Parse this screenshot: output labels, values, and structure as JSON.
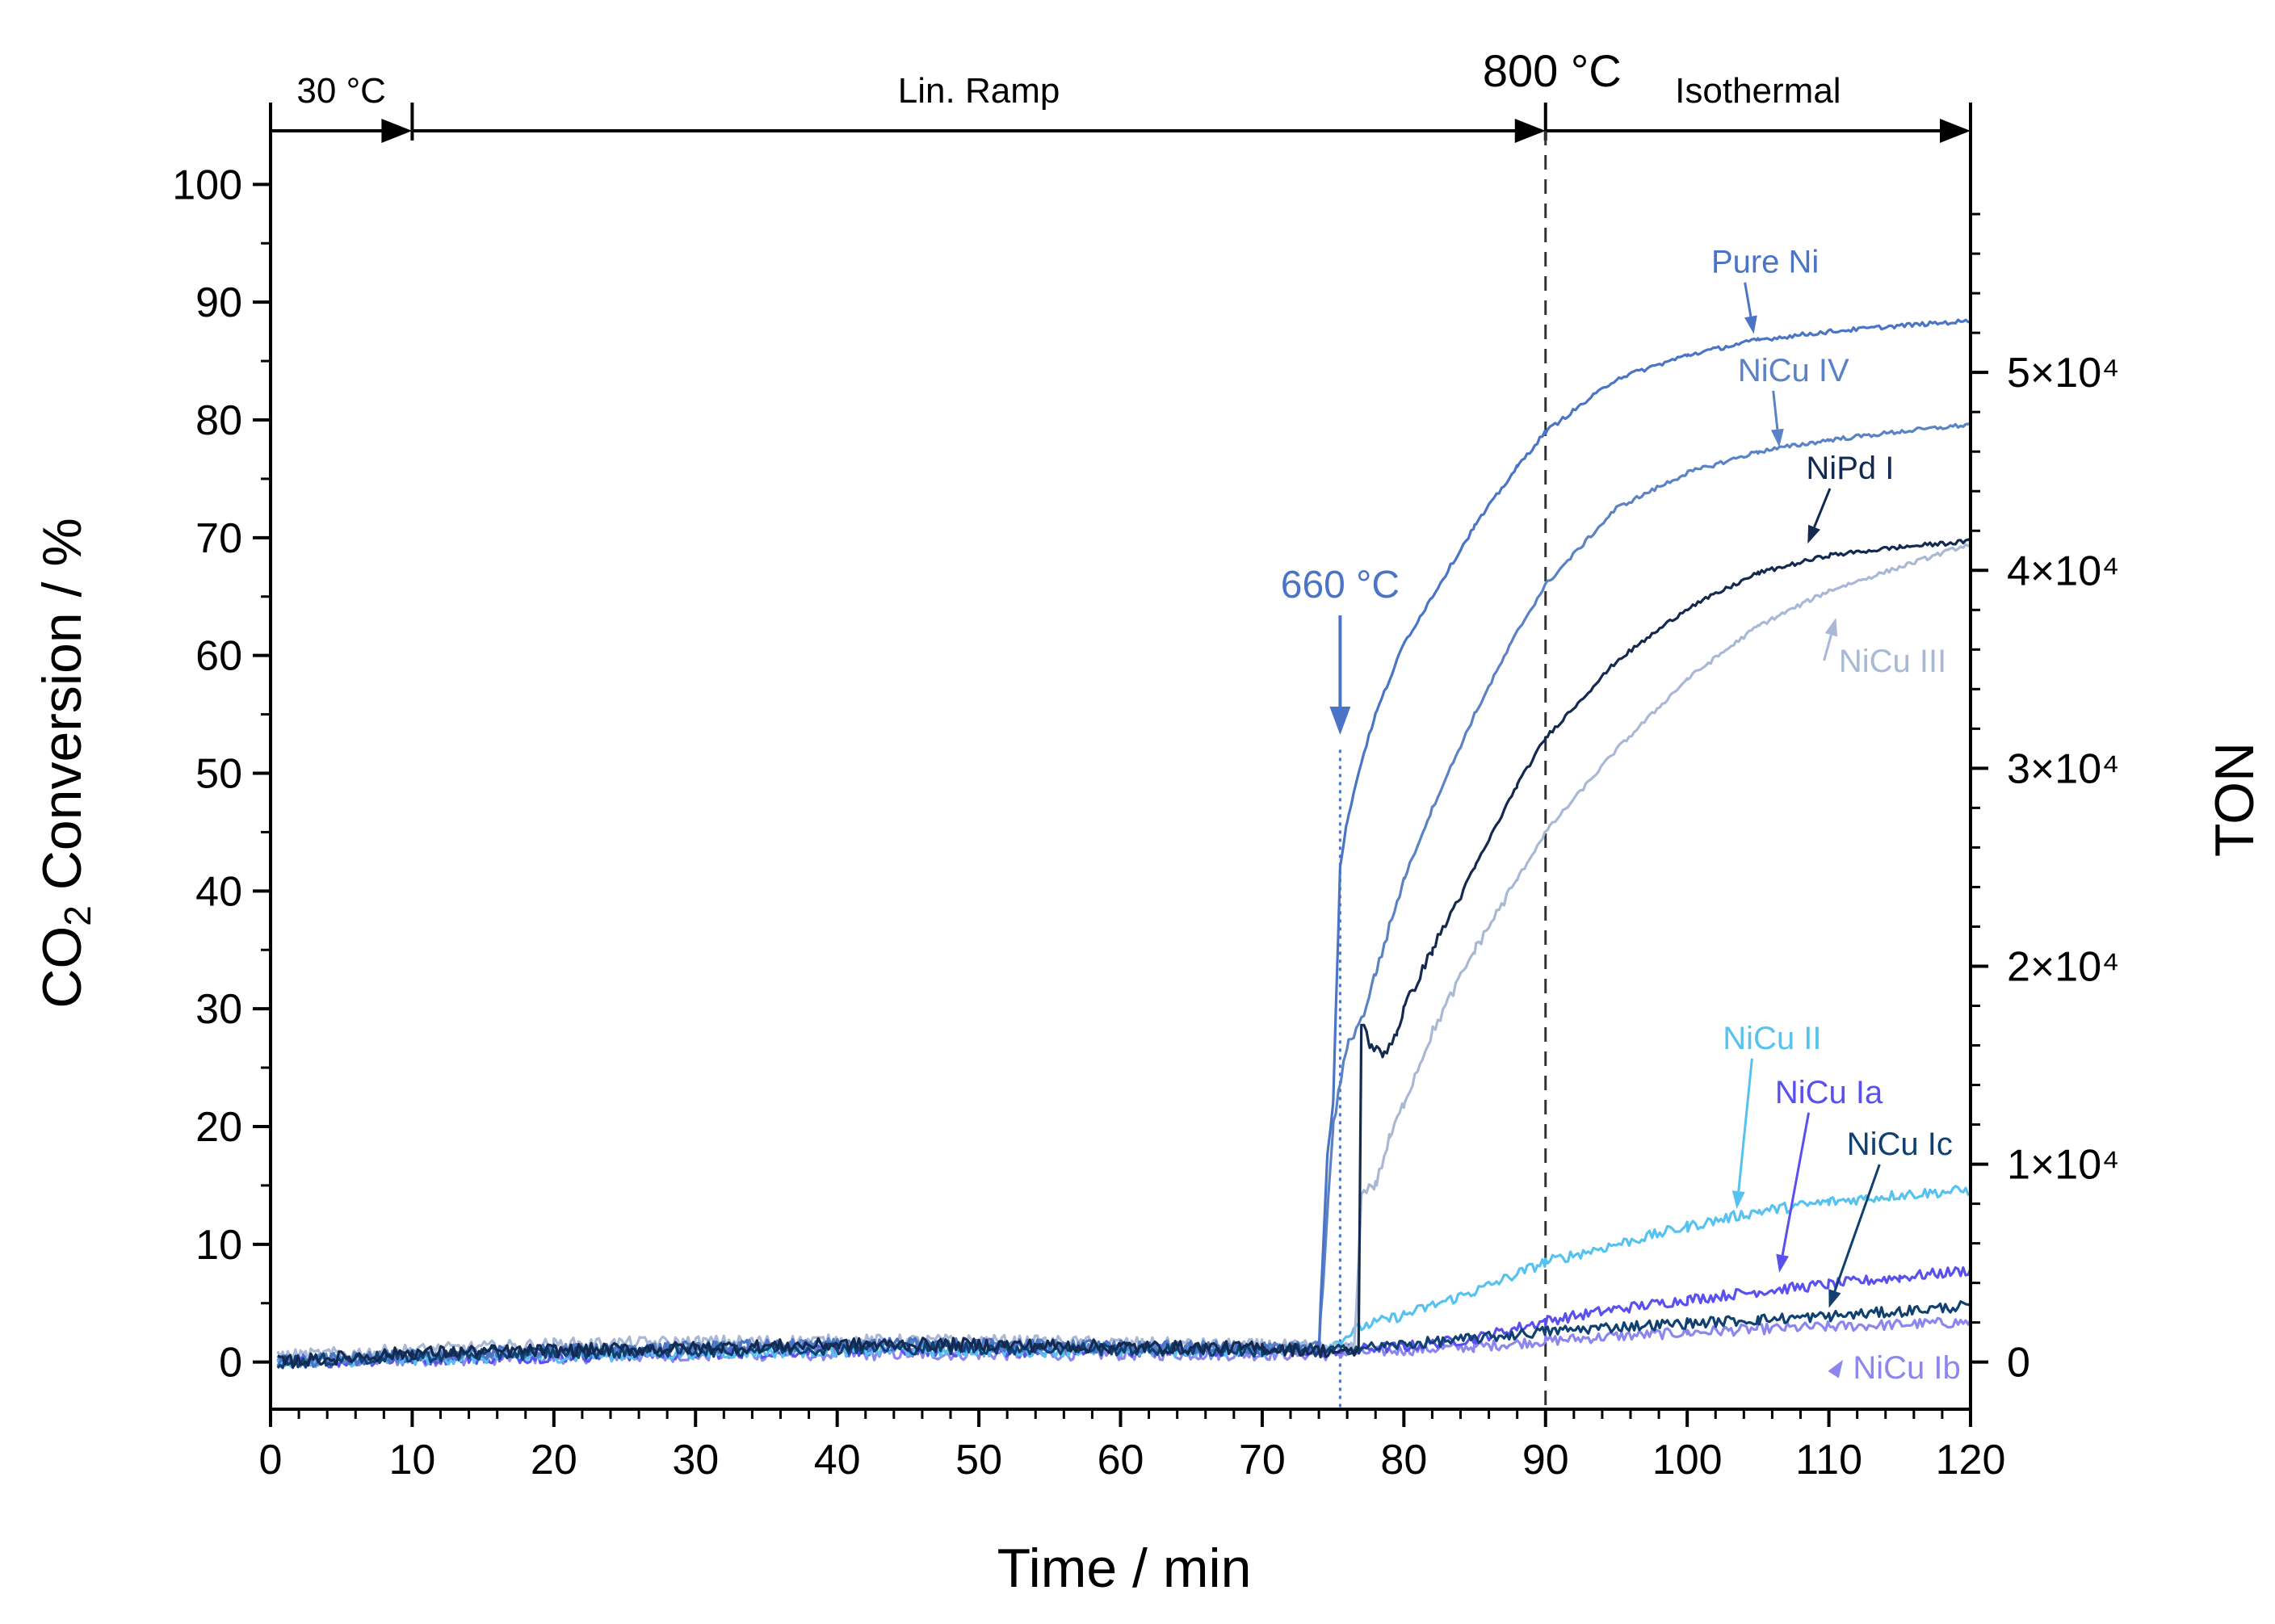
{
  "chart_data": {
    "type": "line",
    "title": "",
    "xlabel": "Time / min",
    "ylabel": {
      "prefix": "CO",
      "sub": "2",
      "suffix": " Conversion / %"
    },
    "y2label": "TON",
    "xlim": [
      0,
      120
    ],
    "ylim": [
      -4,
      104
    ],
    "y2lim": [
      -2380,
      61880
    ],
    "x_ticks": [
      0,
      10,
      20,
      30,
      40,
      50,
      60,
      70,
      80,
      90,
      100,
      110,
      120
    ],
    "y_ticks": [
      0,
      10,
      20,
      30,
      40,
      50,
      60,
      70,
      80,
      90,
      100
    ],
    "y2_ticks": [
      {
        "value": 0,
        "label": "0"
      },
      {
        "value": 10000,
        "label": "1×10⁴"
      },
      {
        "value": 20000,
        "label": "2×10⁴"
      },
      {
        "value": 30000,
        "label": "3×10⁴"
      },
      {
        "value": 40000,
        "label": "4×10⁴"
      },
      {
        "value": 50000,
        "label": "5×10⁴"
      }
    ],
    "phases": [
      {
        "label": "30 °C",
        "start": 0,
        "end": 10
      },
      {
        "label": "Lin. Ramp",
        "start": 10,
        "end": 90
      },
      {
        "label": "Isothermal",
        "start": 90,
        "end": 120
      }
    ],
    "temp_marker": {
      "label": "800 °C",
      "x": 90
    },
    "onset_marker": {
      "label": "660 °C",
      "x": 75.5,
      "y": 52
    },
    "series": [
      {
        "name": "Pure Ni",
        "color": "#4a74c6",
        "x": [
          0.5,
          10,
          20,
          30,
          40,
          50,
          60,
          70,
          74,
          74.6,
          75,
          75.5,
          76,
          77,
          78,
          80,
          82,
          85,
          88,
          90,
          95,
          100,
          105,
          110,
          115,
          120
        ],
        "y": [
          0,
          0.5,
          1,
          1.2,
          1.5,
          1.5,
          1.3,
          1.2,
          1.2,
          18,
          22,
          42,
          46,
          51,
          55,
          61,
          65,
          71,
          76,
          79,
          83.5,
          85.5,
          86.8,
          87.5,
          88,
          88.4
        ]
      },
      {
        "name": "NiCu IV",
        "color": "#5a82c4",
        "x": [
          0.5,
          10,
          20,
          30,
          40,
          50,
          60,
          70,
          74,
          75,
          76,
          77,
          78,
          80,
          82,
          85,
          88,
          90,
          95,
          100,
          105,
          110,
          115,
          120
        ],
        "y": [
          0,
          0.5,
          1,
          1.2,
          1.5,
          1.5,
          1.3,
          1.2,
          1.2,
          20,
          27,
          29,
          33,
          41,
          47,
          55,
          62,
          66,
          72.5,
          75.5,
          77.3,
          78.3,
          79,
          79.6
        ]
      },
      {
        "name": "NiPd I",
        "color": "#13294f",
        "x": [
          0.5,
          10,
          20,
          30,
          40,
          50,
          60,
          70,
          76.5,
          76.8,
          77,
          77.6,
          78.5,
          79.5,
          80,
          82,
          85,
          88,
          90,
          95,
          100,
          105,
          110,
          115,
          120
        ],
        "y": [
          0,
          0.8,
          1,
          1.2,
          1.5,
          1.5,
          1.3,
          1.2,
          0.8,
          1,
          29,
          27,
          26,
          28,
          30,
          35,
          42,
          49,
          53,
          59.5,
          64,
          67,
          68.5,
          69.2,
          69.7
        ]
      },
      {
        "name": "NiCu III",
        "color": "#a9b8d4",
        "x": [
          0.5,
          10,
          20,
          30,
          40,
          50,
          60,
          70,
          76.5,
          77,
          77.5,
          78,
          79,
          80,
          82,
          85,
          88,
          90,
          95,
          100,
          105,
          110,
          115,
          120
        ],
        "y": [
          0.5,
          1,
          1.5,
          1.7,
          1.8,
          1.8,
          1.6,
          1.4,
          1.2,
          14,
          15,
          15,
          19,
          22,
          28,
          35,
          41,
          45,
          52,
          58,
          62.5,
          65.5,
          67.5,
          69.5
        ]
      },
      {
        "name": "NiCu II",
        "color": "#56c2ef",
        "x": [
          0.5,
          10,
          20,
          30,
          40,
          50,
          60,
          70,
          75,
          77,
          80,
          85,
          90,
          95,
          100,
          105,
          110,
          115,
          120
        ],
        "y": [
          0,
          0.3,
          0.5,
          0.8,
          1,
          1,
          1,
          1,
          1.5,
          3,
          4,
          6,
          8.5,
          10,
          11.5,
          12.8,
          13.6,
          14.2,
          14.6
        ]
      },
      {
        "name": "NiCu Ia",
        "color": "#5a50ef",
        "x": [
          0.5,
          10,
          20,
          30,
          40,
          50,
          60,
          70,
          75,
          80,
          85,
          90,
          95,
          100,
          105,
          110,
          115,
          120
        ],
        "y": [
          0,
          0.3,
          0.5,
          0.8,
          1,
          1,
          1,
          1,
          1,
          1.3,
          2,
          3.5,
          4.5,
          5.3,
          6,
          6.6,
          7.2,
          7.8
        ]
      },
      {
        "name": "NiCu Ic",
        "color": "#0f4070",
        "x": [
          0.5,
          10,
          20,
          30,
          40,
          50,
          60,
          70,
          75,
          80,
          85,
          90,
          95,
          100,
          105,
          110,
          115,
          120
        ],
        "y": [
          0,
          0.5,
          0.8,
          1,
          1.2,
          1.2,
          1.1,
          1,
          1,
          1.5,
          2,
          2.6,
          3,
          3.3,
          3.6,
          3.9,
          4.3,
          4.8
        ]
      },
      {
        "name": "NiCu Ib",
        "color": "#8c86ee",
        "x": [
          0.5,
          10,
          20,
          30,
          40,
          50,
          60,
          70,
          75,
          80,
          85,
          90,
          95,
          100,
          105,
          110,
          115,
          120
        ],
        "y": [
          0,
          0.2,
          0.4,
          0.6,
          0.7,
          0.7,
          0.7,
          0.7,
          0.7,
          1,
          1.3,
          1.8,
          2.2,
          2.5,
          2.8,
          3,
          3.2,
          3.4
        ]
      }
    ],
    "annotations": [
      {
        "series": "Pure Ni",
        "text": "Pure Ni",
        "text_x": 105.5,
        "text_y": 92.5,
        "arrow_to": [
          104.7,
          87.3
        ]
      },
      {
        "series": "NiCu IV",
        "text": "NiCu IV",
        "text_x": 107.5,
        "text_y": 83.3,
        "arrow_to": [
          106.5,
          77.7
        ]
      },
      {
        "series": "NiPd I",
        "text": "NiPd I",
        "text_x": 111.5,
        "text_y": 75,
        "arrow_to": [
          108.5,
          69.5
        ]
      },
      {
        "series": "NiCu III",
        "text": "NiCu III",
        "text_x": 114.5,
        "text_y": 58.6,
        "arrow_to": [
          110.5,
          63.2
        ]
      },
      {
        "series": "NiCu II",
        "text": "NiCu II",
        "text_x": 106,
        "text_y": 26.6,
        "arrow_to": [
          103.5,
          13
        ]
      },
      {
        "series": "NiCu Ia",
        "text": "NiCu Ia",
        "text_x": 110,
        "text_y": 22,
        "arrow_to": [
          106.5,
          7.6
        ]
      },
      {
        "series": "NiCu Ic",
        "text": "NiCu Ic",
        "text_x": 115,
        "text_y": 17.6,
        "arrow_to": [
          110,
          4.6
        ]
      },
      {
        "series": "NiCu Ib",
        "text": "NiCu Ib",
        "text_x": 115.5,
        "text_y": -1.4,
        "arrow_to": [
          111,
          0.2
        ]
      }
    ]
  }
}
